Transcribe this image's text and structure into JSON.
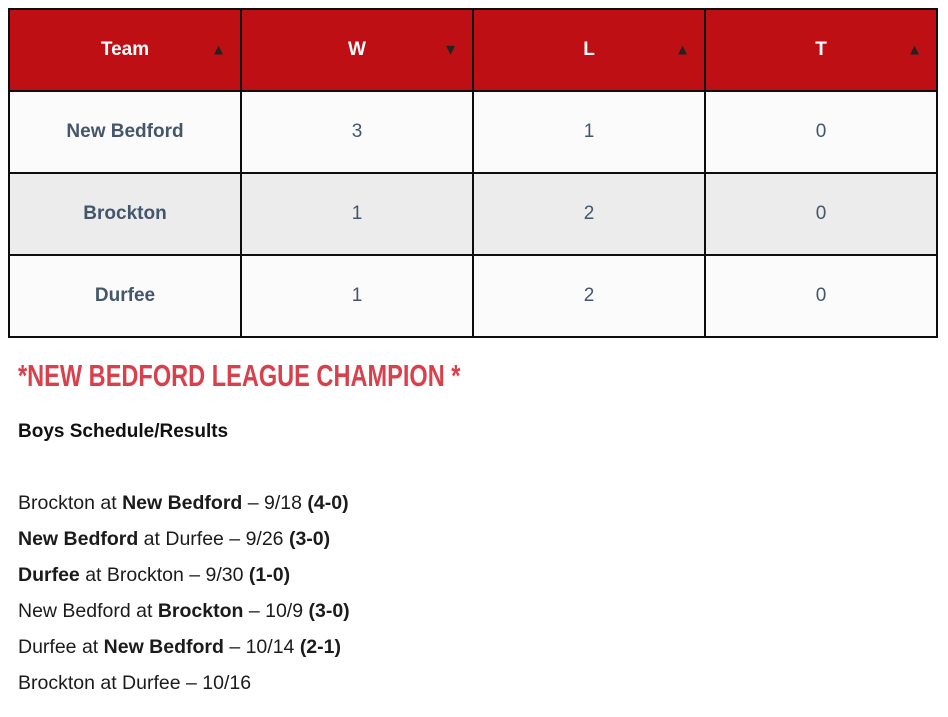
{
  "colors": {
    "header_bg": "#bd0f14",
    "header_text": "#ffffff",
    "sort_arrow": "#232323",
    "row_bg": "#fbfbfb",
    "row_alt_bg": "#ececec",
    "cell_text": "#44566b",
    "border": "#0d0d0d",
    "champion_red": "#d8414c",
    "body_text": "#1b1b1b"
  },
  "icons": {
    "sort_asc": "▲",
    "sort_desc": "▼"
  },
  "standings": {
    "columns": [
      {
        "label": "Team",
        "sort": "asc"
      },
      {
        "label": "W",
        "sort": "desc"
      },
      {
        "label": "L",
        "sort": "asc"
      },
      {
        "label": "T",
        "sort": "asc"
      }
    ],
    "rows": [
      {
        "team": "New Bedford",
        "cells": [
          "3",
          "1",
          "0"
        ]
      },
      {
        "team": "Brockton",
        "cells": [
          "1",
          "2",
          "0"
        ]
      },
      {
        "team": "Durfee",
        "cells": [
          "1",
          "2",
          "0"
        ]
      }
    ]
  },
  "champion_note": "*NEW BEDFORD LEAGUE CHAMPION *",
  "schedule": {
    "heading": "Boys Schedule/Results",
    "games": [
      {
        "segments": [
          {
            "t": "Brockton at ",
            "b": false
          },
          {
            "t": "New Bedford",
            "b": true
          },
          {
            "t": " – 9/18 ",
            "b": false
          },
          {
            "t": "(4-0)",
            "b": true
          }
        ]
      },
      {
        "segments": [
          {
            "t": "New Bedford",
            "b": true
          },
          {
            "t": " at Durfee – 9/26 ",
            "b": false
          },
          {
            "t": "(3-0)",
            "b": true
          }
        ]
      },
      {
        "segments": [
          {
            "t": "Durfee",
            "b": true
          },
          {
            "t": " at Brockton – 9/30 ",
            "b": false
          },
          {
            "t": "(1-0)",
            "b": true
          }
        ]
      },
      {
        "segments": [
          {
            "t": "New Bedford at ",
            "b": false
          },
          {
            "t": "Brockton",
            "b": true
          },
          {
            "t": " – 10/9 ",
            "b": false
          },
          {
            "t": "(3-0)",
            "b": true
          }
        ]
      },
      {
        "segments": [
          {
            "t": "Durfee at ",
            "b": false
          },
          {
            "t": "New Bedford",
            "b": true
          },
          {
            "t": " – 10/14 ",
            "b": false
          },
          {
            "t": "(2-1)",
            "b": true
          }
        ]
      },
      {
        "segments": [
          {
            "t": "Brockton at Durfee – 10/16",
            "b": false
          }
        ]
      }
    ]
  }
}
